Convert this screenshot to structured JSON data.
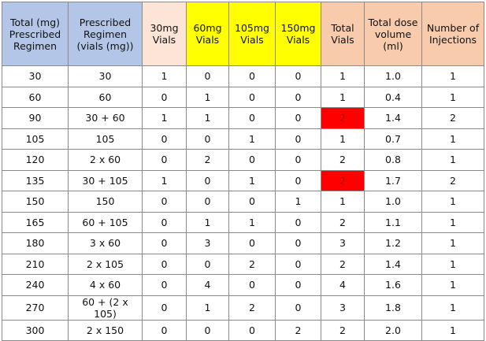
{
  "table": {
    "header": [
      "Total (mg) Prescribed Regimen",
      "Prescribed Regimen (vials (mg))",
      "30mg Vials",
      "60mg Vials",
      "105mg Vials",
      "150mg Vials",
      "Total Vials",
      "Total dose volume (ml)",
      "Number of Injections"
    ],
    "rows": [
      [
        "30",
        "30",
        "1",
        "0",
        "0",
        "0",
        "1",
        "1.0",
        "1"
      ],
      [
        "60",
        "60",
        "0",
        "1",
        "0",
        "0",
        "1",
        "0.4",
        "1"
      ],
      [
        "90",
        "30 + 60",
        "1",
        "1",
        "0",
        "0",
        "2",
        "1.4",
        "2"
      ],
      [
        "105",
        "105",
        "0",
        "0",
        "1",
        "0",
        "1",
        "0.7",
        "1"
      ],
      [
        "120",
        "2 x 60",
        "0",
        "2",
        "0",
        "0",
        "2",
        "0.8",
        "1"
      ],
      [
        "135",
        "30 + 105",
        "1",
        "0",
        "1",
        "0",
        "2",
        "1.7",
        "2"
      ],
      [
        "150",
        "150",
        "0",
        "0",
        "0",
        "1",
        "1",
        "1.0",
        "1"
      ],
      [
        "165",
        "60 + 105",
        "0",
        "1",
        "1",
        "0",
        "2",
        "1.1",
        "1"
      ],
      [
        "180",
        "3 x 60",
        "0",
        "3",
        "0",
        "0",
        "3",
        "1.2",
        "1"
      ],
      [
        "210",
        "2 x 105",
        "0",
        "0",
        "2",
        "0",
        "2",
        "1.4",
        "1"
      ],
      [
        "240",
        "4 x 60",
        "0",
        "4",
        "0",
        "0",
        "4",
        "1.6",
        "1"
      ],
      [
        "270",
        "60 + (2 x 105)",
        "0",
        "1",
        "2",
        "0",
        "3",
        "1.8",
        "1"
      ],
      [
        "300",
        "2 x 150",
        "0",
        "0",
        "0",
        "2",
        "2",
        "2.0",
        "1"
      ]
    ]
  }
}
